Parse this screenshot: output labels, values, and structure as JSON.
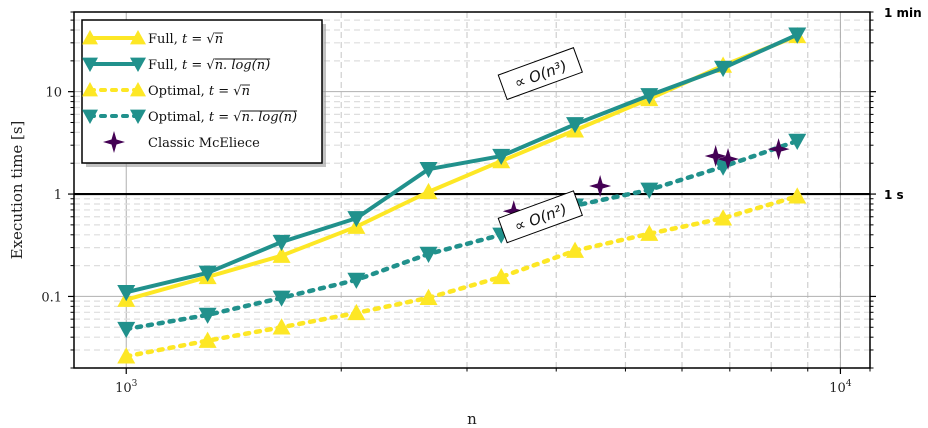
{
  "chart_data": {
    "type": "line",
    "xlabel": "n",
    "ylabel": "Execution time [s]",
    "xscale": "log",
    "yscale": "log",
    "xlim": [
      845,
      11000
    ],
    "ylim": [
      0.02,
      60
    ],
    "x_tick_labels": [
      "10^3",
      "10^4"
    ],
    "y_tick_labels": [
      "0.1",
      "1",
      "10"
    ],
    "right_axis_labels": [
      {
        "value": 60,
        "label": "1 min"
      },
      {
        "value": 1,
        "label": "1 s"
      }
    ],
    "grid": true,
    "legend_position": "upper-left",
    "x": [
      1000,
      1300,
      1650,
      2100,
      2650,
      3350,
      4250,
      5400,
      6850,
      8700
    ],
    "series": [
      {
        "name": "Full, t = √n",
        "color": "#fde725",
        "line": "solid",
        "marker": "triangle-up",
        "values": [
          0.093,
          0.155,
          0.25,
          0.48,
          1.05,
          2.1,
          4.2,
          8.5,
          18,
          35
        ]
      },
      {
        "name": "Full, t = √(n.log(n))",
        "color": "#21918c",
        "line": "solid",
        "marker": "triangle-down",
        "values": [
          0.11,
          0.17,
          0.34,
          0.58,
          1.75,
          2.35,
          4.8,
          9.2,
          17,
          36
        ]
      },
      {
        "name": "Optimal, t = √n",
        "color": "#fde725",
        "line": "dotted",
        "marker": "triangle-up",
        "values": [
          0.026,
          0.037,
          0.05,
          0.069,
          0.097,
          0.155,
          0.28,
          0.41,
          0.58,
          0.95
        ]
      },
      {
        "name": "Optimal, t = √(n.log(n))",
        "color": "#21918c",
        "line": "dotted",
        "marker": "triangle-down",
        "values": [
          0.048,
          0.066,
          0.097,
          0.145,
          0.26,
          0.4,
          0.77,
          1.1,
          1.85,
          3.3
        ]
      }
    ],
    "scatter_series": [
      {
        "name": "Classic McEliece",
        "color": "#440154",
        "marker": "star4",
        "points": [
          {
            "x": 3488,
            "y": 0.68
          },
          {
            "x": 4608,
            "y": 1.2
          },
          {
            "x": 6688,
            "y": 2.35
          },
          {
            "x": 6960,
            "y": 2.2
          },
          {
            "x": 8192,
            "y": 2.75
          }
        ]
      }
    ],
    "legend_entries": [
      {
        "prefix": "Full, ",
        "var": "t",
        "eq": " = ",
        "root": "n"
      },
      {
        "prefix": "Full, ",
        "var": "t",
        "eq": " = ",
        "root": "n. log(n)"
      },
      {
        "prefix": "Optimal, ",
        "var": "t",
        "eq": " = ",
        "root": "n"
      },
      {
        "prefix": "Optimal, ",
        "var": "t",
        "eq": " = ",
        "root": "n. log(n)"
      },
      {
        "prefix": "Classic McEliece",
        "var": "",
        "eq": "",
        "root": ""
      }
    ],
    "annotations": [
      {
        "text": "∝ O(n³)",
        "anchor_x": 3800,
        "anchor_y": 15
      },
      {
        "text": "∝ O(n²)",
        "anchor_x": 3800,
        "anchor_y": 0.6
      }
    ]
  }
}
